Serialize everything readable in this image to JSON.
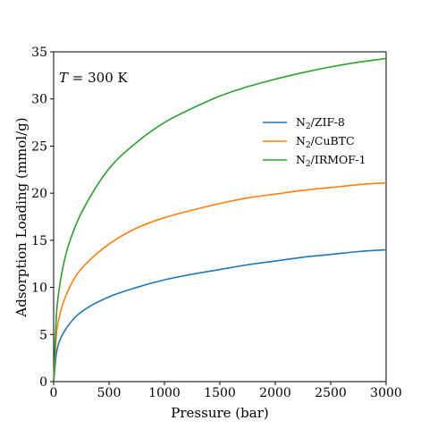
{
  "chart_data": {
    "type": "line",
    "xlabel": "Pressure (bar)",
    "ylabel": "Adsorption Loading (mmol/g)",
    "xlim": [
      0,
      3000
    ],
    "ylim": [
      0,
      35
    ],
    "xticks": [
      0,
      500,
      1000,
      1500,
      2000,
      2500,
      3000
    ],
    "yticks": [
      0,
      5,
      10,
      15,
      20,
      25,
      30,
      35
    ],
    "grid": false,
    "legend_position": "upper-right",
    "annotation": {
      "var": "T",
      "text": " = 300 K"
    },
    "x": [
      0,
      25,
      50,
      100,
      200,
      300,
      500,
      750,
      1000,
      1250,
      1500,
      1750,
      2000,
      2250,
      2500,
      2750,
      3000
    ],
    "series": [
      {
        "name_base": "N",
        "name_sub": "2",
        "name_rest": "/ZIF-8",
        "color": "#1f77b4",
        "values": [
          0,
          3.0,
          4.2,
          5.4,
          6.9,
          7.8,
          9.0,
          10.0,
          10.8,
          11.4,
          11.9,
          12.4,
          12.8,
          13.2,
          13.5,
          13.8,
          14.0
        ]
      },
      {
        "name_base": "N",
        "name_sub": "2",
        "name_rest": "/CuBTC",
        "color": "#ff7f0e",
        "values": [
          0,
          5.0,
          6.8,
          8.8,
          11.2,
          12.6,
          14.6,
          16.3,
          17.4,
          18.2,
          18.9,
          19.5,
          19.9,
          20.3,
          20.6,
          20.9,
          21.1
        ]
      },
      {
        "name_base": "N",
        "name_sub": "2",
        "name_rest": "/IRMOF-1",
        "color": "#2ca02c",
        "values": [
          0,
          7.0,
          9.8,
          13.0,
          16.6,
          19.0,
          22.6,
          25.4,
          27.5,
          29.0,
          30.3,
          31.3,
          32.1,
          32.8,
          33.4,
          33.9,
          34.3
        ]
      }
    ]
  }
}
